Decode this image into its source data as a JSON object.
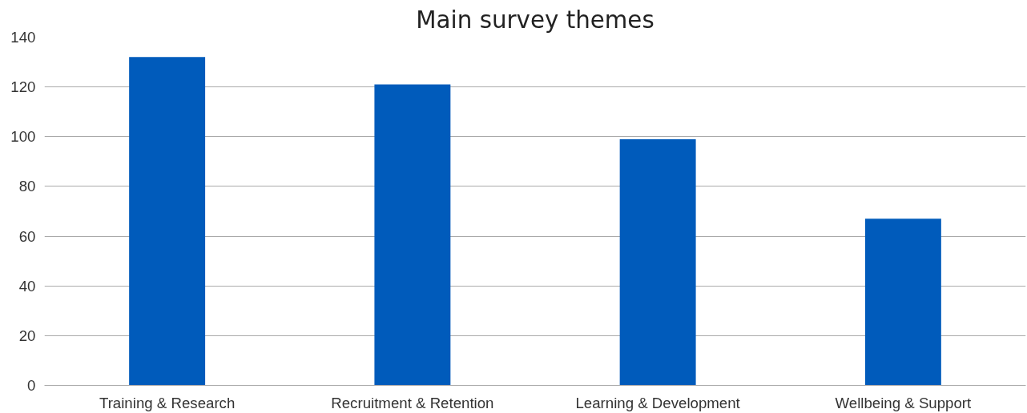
{
  "chart_data": {
    "type": "bar",
    "title": "Main survey themes",
    "categories": [
      "Training & Research",
      "Recruitment & Retention",
      "Learning & Development",
      "Wellbeing & Support"
    ],
    "values": [
      132,
      121,
      99,
      67
    ],
    "color": "#005bbb",
    "ylim": [
      0,
      140
    ],
    "yticks": [
      0,
      20,
      40,
      60,
      80,
      100,
      120,
      140
    ],
    "grid": "y"
  }
}
